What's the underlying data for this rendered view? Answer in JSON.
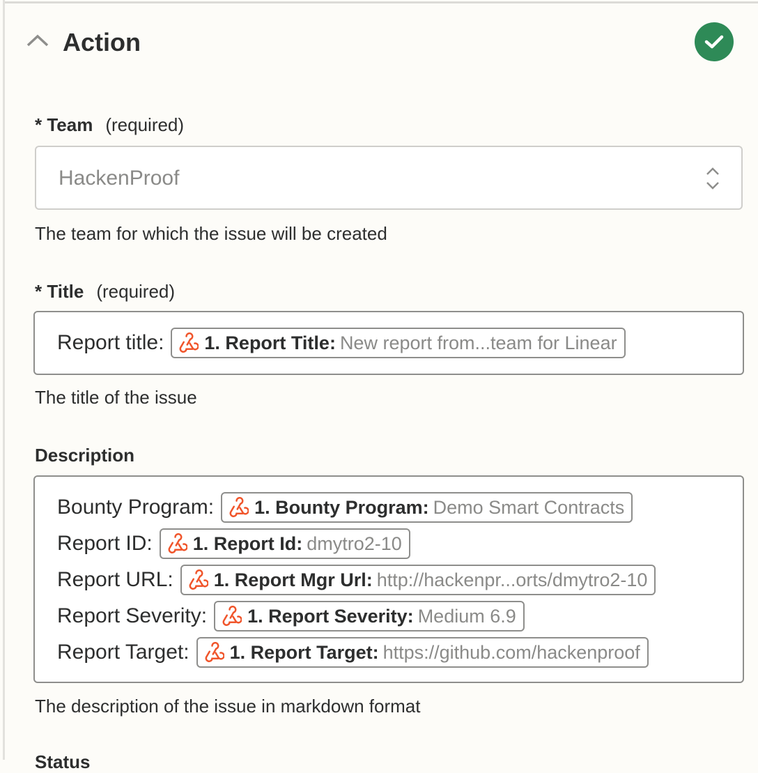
{
  "section": {
    "title": "Action",
    "status": "complete"
  },
  "team": {
    "label": "Team",
    "required": "(required)",
    "value": "HackenProof",
    "help": "The team for which the issue will be created"
  },
  "title": {
    "label": "Title",
    "required": "(required)",
    "prefix": "Report title:",
    "pill": {
      "name": "1. Report Title:",
      "value": "New report from...team for Linear"
    },
    "help": "The title of the issue"
  },
  "description": {
    "label": "Description",
    "help": "The description of the issue in markdown format",
    "rows": [
      {
        "label": "Bounty Program:",
        "name": "1. Bounty Program:",
        "value": "Demo Smart Contracts"
      },
      {
        "label": "Report ID:",
        "name": "1. Report Id:",
        "value": "dmytro2-10"
      },
      {
        "label": "Report URL:",
        "name": "1. Report Mgr Url:",
        "value": "http://hackenpr...orts/dmytro2-10"
      },
      {
        "label": "Report Severity:",
        "name": "1. Report Severity:",
        "value": "Medium 6.9"
      },
      {
        "label": "Report Target:",
        "name": "1. Report Target:",
        "value": "https://github.com/hackenproof"
      }
    ]
  },
  "status": {
    "label": "Status"
  },
  "colors": {
    "accent": "#f0552b",
    "success": "#2e8a57"
  },
  "icons": {
    "pill": "webhook-icon",
    "collapse": "chevron-up-icon",
    "status": "check-circle-icon",
    "select": "updown-icon"
  }
}
